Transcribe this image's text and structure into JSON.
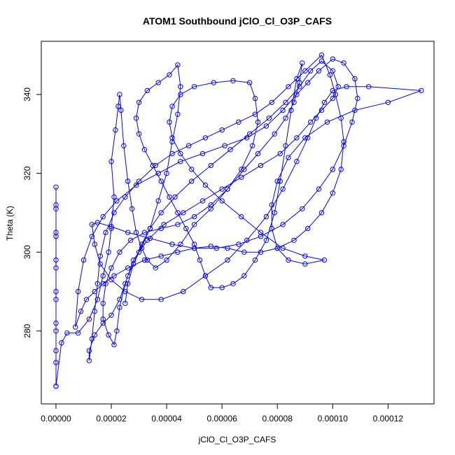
{
  "chart_data": {
    "type": "scatter",
    "mode": "lines+markers",
    "title": "ATOM1 Southbound jClO_Cl_O3P_CAFS",
    "xlabel": "jClO_Cl_O3P_CAFS",
    "ylabel": "Theta (K)",
    "xlim": [
      -5.3e-06,
      0.0001366
    ],
    "ylim": [
      261.5,
      353.5
    ],
    "x_ticks": [
      0,
      2e-05,
      4e-05,
      6e-05,
      8e-05,
      0.0001,
      0.00012
    ],
    "x_tick_labels": [
      "0.00000",
      "0.00002",
      "0.00004",
      "0.00006",
      "0.00008",
      "0.00010",
      "0.00012"
    ],
    "y_ticks": [
      280,
      300,
      320,
      340
    ],
    "y_tick_labels": [
      "280",
      "300",
      "320",
      "340"
    ],
    "color": "#0000ff",
    "grid": false,
    "series": [
      {
        "values": [
          [
            0.0,
            266.0
          ],
          [
            0.0,
            275.0
          ],
          [
            0.0,
            282.0
          ],
          [
            0.0,
            290.0
          ],
          [
            0.0,
            298.0
          ],
          [
            0.0,
            305.0
          ],
          [
            0.0,
            311.0
          ],
          [
            0.0,
            316.5
          ],
          [
            0.0,
            312.0
          ],
          [
            0.0,
            304.0
          ],
          [
            0.0,
            296.0
          ],
          [
            0.0,
            288.0
          ],
          [
            0.0,
            280.0
          ],
          [
            0.0,
            272.0
          ],
          [
            0.0,
            266.0
          ],
          [
            2e-06,
            277.0
          ],
          [
            4e-06,
            279.5
          ],
          [
            8e-06,
            279.5
          ],
          [
            1.2e-05,
            283.0
          ],
          [
            1.5e-05,
            288.0
          ],
          [
            1.7e-05,
            294.0
          ],
          [
            1.9e-05,
            300.0
          ],
          [
            2e-05,
            306.0
          ],
          [
            2.1e-05,
            314.0
          ],
          [
            2e-05,
            323.0
          ],
          [
            2.15e-05,
            331.0
          ],
          [
            2.25e-05,
            337.0
          ],
          [
            2.3e-05,
            340.0
          ],
          [
            2.35e-05,
            336.0
          ],
          [
            2.45e-05,
            327.0
          ],
          [
            2.6e-05,
            318.0
          ],
          [
            2.75e-05,
            311.0
          ],
          [
            2.9e-05,
            305.0
          ],
          [
            3.1e-05,
            301.0
          ],
          [
            3.3e-05,
            298.0
          ],
          [
            3.6e-05,
            296.0
          ],
          [
            4e-05,
            298.0
          ],
          [
            4.5e-05,
            302.0
          ],
          [
            5e-05,
            307.0
          ],
          [
            5.6e-05,
            311.0
          ],
          [
            6.2e-05,
            316.0
          ],
          [
            6.8e-05,
            321.0
          ],
          [
            7.3e-05,
            325.0
          ],
          [
            7.9e-05,
            330.0
          ],
          [
            8.3e-05,
            334.0
          ],
          [
            8.6e-05,
            338.0
          ],
          [
            8.8e-05,
            343.0
          ],
          [
            8.9e-05,
            348.0
          ],
          [
            8.7e-05,
            344.0
          ],
          [
            8.5e-05,
            336.0
          ],
          [
            8.3e-05,
            327.0
          ],
          [
            8.1e-05,
            318.0
          ],
          [
            7.9e-05,
            310.0
          ],
          [
            7.6e-05,
            303.0
          ],
          [
            7.2e-05,
            298.0
          ],
          [
            6.8e-05,
            294.0
          ],
          [
            6.4e-05,
            292.0
          ],
          [
            6e-05,
            291.0
          ],
          [
            5.6e-05,
            291.0
          ],
          [
            5.4e-05,
            294.0
          ],
          [
            5.2e-05,
            298.0
          ],
          [
            5e-05,
            302.0
          ],
          [
            4.7e-05,
            306.0
          ],
          [
            4.4e-05,
            310.0
          ],
          [
            4.1e-05,
            314.0
          ],
          [
            3.8e-05,
            318.0
          ],
          [
            3.5e-05,
            322.0
          ],
          [
            3.2e-05,
            326.0
          ],
          [
            3e-05,
            330.0
          ],
          [
            2.9e-05,
            334.0
          ],
          [
            3e-05,
            338.0
          ],
          [
            3.3e-05,
            341.0
          ],
          [
            3.7e-05,
            343.0
          ],
          [
            4.1e-05,
            345.0
          ],
          [
            4.4e-05,
            347.5
          ],
          [
            4.5e-05,
            342.0
          ],
          [
            4.4e-05,
            335.0
          ],
          [
            4.2e-05,
            328.0
          ],
          [
            4e-05,
            320.0
          ],
          [
            3.7e-05,
            313.0
          ],
          [
            3.4e-05,
            306.0
          ],
          [
            3e-05,
            300.0
          ],
          [
            2.6e-05,
            294.0
          ],
          [
            2.3e-05,
            288.0
          ],
          [
            2e-05,
            284.0
          ],
          [
            1.7e-05,
            282.0
          ],
          [
            1.4e-05,
            279.0
          ],
          [
            1.2e-05,
            275.0
          ],
          [
            1.2e-05,
            272.5
          ],
          [
            1.3e-05,
            278.0
          ],
          [
            1.4e-05,
            285.0
          ],
          [
            1.5e-05,
            292.0
          ],
          [
            1.6e-05,
            299.0
          ],
          [
            1.8e-05,
            305.0
          ],
          [
            2.1e-05,
            310.0
          ],
          [
            2.5e-05,
            314.0
          ],
          [
            3e-05,
            318.0
          ],
          [
            3.6e-05,
            322.0
          ],
          [
            4.2e-05,
            325.0
          ],
          [
            4.8e-05,
            327.0
          ],
          [
            5.4e-05,
            329.0
          ],
          [
            6e-05,
            331.0
          ],
          [
            6.6e-05,
            333.0
          ],
          [
            7.2e-05,
            335.0
          ],
          [
            7.8e-05,
            338.0
          ],
          [
            8.4e-05,
            342.0
          ],
          [
            9e-05,
            346.0
          ],
          [
            9.6e-05,
            350.0
          ],
          [
            9.9e-05,
            345.0
          ],
          [
            0.000101,
            340.0
          ],
          [
            0.000103,
            334.0
          ],
          [
            0.000104,
            328.0
          ],
          [
            0.000103,
            321.0
          ],
          [
            0.0001,
            315.0
          ],
          [
            9.6e-05,
            310.0
          ],
          [
            9.1e-05,
            306.0
          ],
          [
            8.6e-05,
            303.0
          ],
          [
            8e-05,
            301.0
          ],
          [
            7.4e-05,
            300.0
          ],
          [
            6.8e-05,
            300.0
          ],
          [
            6.2e-05,
            301.0
          ],
          [
            5.6e-05,
            301.5
          ],
          [
            5e-05,
            301.0
          ],
          [
            4.4e-05,
            300.0
          ],
          [
            3.8e-05,
            299.0
          ],
          [
            3.2e-05,
            298.0
          ],
          [
            2.6e-05,
            296.0
          ],
          [
            2.1e-05,
            294.0
          ],
          [
            1.7e-05,
            292.0
          ],
          [
            1.4e-05,
            290.0
          ],
          [
            1.1e-05,
            288.0
          ],
          [
            9e-06,
            285.0
          ],
          [
            7e-06,
            281.0
          ],
          [
            8e-06,
            290.0
          ],
          [
            1e-05,
            298.0
          ],
          [
            1.3e-05,
            304.0
          ],
          [
            1.7e-05,
            309.0
          ],
          [
            2.2e-05,
            313.0
          ],
          [
            2.9e-05,
            317.0
          ],
          [
            3.7e-05,
            320.0
          ],
          [
            4.5e-05,
            323.0
          ],
          [
            5.3e-05,
            325.0
          ],
          [
            6.1e-05,
            327.0
          ],
          [
            6.9e-05,
            329.0
          ],
          [
            7.6e-05,
            332.0
          ],
          [
            8.2e-05,
            336.0
          ],
          [
            8.7e-05,
            340.0
          ],
          [
            9.1e-05,
            343.0
          ],
          [
            9.5e-05,
            346.0
          ],
          [
            0.0001,
            349.0
          ],
          [
            0.000104,
            348.0
          ],
          [
            0.000108,
            344.0
          ],
          [
            0.000109,
            339.0
          ],
          [
            0.000107,
            333.0
          ],
          [
            0.000104,
            327.0
          ],
          [
            0.0001,
            321.0
          ],
          [
            9.5e-05,
            316.0
          ],
          [
            8.9e-05,
            311.0
          ],
          [
            8.2e-05,
            307.0
          ],
          [
            7.4e-05,
            304.0
          ],
          [
            6.6e-05,
            302.0
          ],
          [
            5.8e-05,
            301.0
          ],
          [
            5e-05,
            301.0
          ],
          [
            4.2e-05,
            302.0
          ],
          [
            3.4e-05,
            303.5
          ],
          [
            2.6e-05,
            305.0
          ],
          [
            2e-05,
            306.5
          ],
          [
            1.5e-05,
            307.5
          ],
          [
            1.3e-05,
            307.0
          ],
          [
            1.4e-05,
            302.0
          ],
          [
            1.6e-05,
            297.0
          ],
          [
            2e-05,
            293.0
          ],
          [
            2.5e-05,
            290.0
          ],
          [
            3.1e-05,
            288.0
          ],
          [
            3.8e-05,
            288.0
          ],
          [
            4.6e-05,
            290.0
          ],
          [
            5.4e-05,
            294.0
          ],
          [
            6.2e-05,
            298.0
          ],
          [
            6.9e-05,
            303.0
          ],
          [
            7.6e-05,
            309.0
          ],
          [
            8.2e-05,
            316.0
          ],
          [
            8.7e-05,
            323.0
          ],
          [
            9.1e-05,
            329.0
          ],
          [
            9.4e-05,
            334.0
          ],
          [
            9.7e-05,
            338.0
          ],
          [
            0.0001,
            341.0
          ],
          [
            0.000105,
            342.0
          ],
          [
            0.000113,
            342.0
          ],
          [
            0.000132,
            341.0
          ],
          [
            0.00012,
            338.0
          ],
          [
            0.000108,
            336.0
          ],
          [
            9.8e-05,
            333.0
          ],
          [
            9e-05,
            329.0
          ],
          [
            8.4e-05,
            324.0
          ],
          [
            8e-05,
            318.0
          ],
          [
            7.8e-05,
            312.0
          ],
          [
            7.8e-05,
            306.0
          ],
          [
            8e-05,
            301.0
          ],
          [
            8.4e-05,
            298.0
          ],
          [
            9e-05,
            297.0
          ],
          [
            9.7e-05,
            298.0
          ],
          [
            9e-05,
            299.0
          ],
          [
            8.2e-05,
            301.0
          ],
          [
            7.4e-05,
            305.0
          ],
          [
            6.7e-05,
            309.0
          ],
          [
            6e-05,
            313.0
          ],
          [
            5.4e-05,
            317.0
          ],
          [
            4.9e-05,
            321.0
          ],
          [
            4.5e-05,
            325.0
          ],
          [
            4.2e-05,
            329.0
          ],
          [
            4.1e-05,
            333.0
          ],
          [
            4.2e-05,
            337.0
          ],
          [
            4.5e-05,
            340.0
          ],
          [
            5e-05,
            342.0
          ],
          [
            5.7e-05,
            343.0
          ],
          [
            6.4e-05,
            343.5
          ],
          [
            7e-05,
            343.0
          ],
          [
            7.2e-05,
            339.0
          ],
          [
            7.3e-05,
            333.0
          ],
          [
            7.1e-05,
            327.0
          ],
          [
            6.7e-05,
            321.0
          ],
          [
            6.2e-05,
            316.0
          ],
          [
            5.6e-05,
            312.0
          ],
          [
            5e-05,
            309.0
          ],
          [
            4.4e-05,
            307.0
          ],
          [
            3.8e-05,
            306.0
          ],
          [
            3.2e-05,
            305.0
          ],
          [
            2.7e-05,
            303.0
          ],
          [
            2.3e-05,
            300.0
          ],
          [
            2e-05,
            296.0
          ],
          [
            1.8e-05,
            292.0
          ],
          [
            1.7e-05,
            287.0
          ],
          [
            1.7e-05,
            283.0
          ],
          [
            1.9e-05,
            279.0
          ],
          [
            2.1e-05,
            276.5
          ],
          [
            2.2e-05,
            280.0
          ],
          [
            2.3e-05,
            286.0
          ],
          [
            2.5e-05,
            292.0
          ],
          [
            2.8e-05,
            298.0
          ],
          [
            3.3e-05,
            303.0
          ],
          [
            3.9e-05,
            307.0
          ],
          [
            4.6e-05,
            310.0
          ],
          [
            5.3e-05,
            313.0
          ],
          [
            6e-05,
            316.0
          ],
          [
            6.7e-05,
            319.0
          ],
          [
            7.4e-05,
            322.0
          ],
          [
            8.1e-05,
            325.0
          ],
          [
            8.7e-05,
            329.0
          ],
          [
            9.2e-05,
            333.0
          ],
          [
            9.6e-05,
            336.0
          ],
          [
            0.0001,
            339.0
          ],
          [
            0.000102,
            342.0
          ],
          [
            0.0001,
            346.0
          ],
          [
            9.6e-05,
            348.5
          ],
          [
            9.2e-05,
            346.0
          ],
          [
            8.8e-05,
            342.0
          ],
          [
            8.3e-05,
            338.0
          ],
          [
            7.7e-05,
            334.0
          ],
          [
            7e-05,
            330.0
          ],
          [
            6.3e-05,
            326.0
          ],
          [
            5.6e-05,
            322.0
          ],
          [
            4.9e-05,
            318.0
          ],
          [
            4.3e-05,
            314.0
          ],
          [
            3.8e-05,
            310.0
          ],
          [
            3.4e-05,
            306.0
          ],
          [
            3.1e-05,
            302.0
          ],
          [
            2.8e-05,
            297.0
          ],
          [
            2.6e-05,
            292.0
          ],
          [
            2.5e-05,
            287.0
          ]
        ]
      }
    ]
  }
}
